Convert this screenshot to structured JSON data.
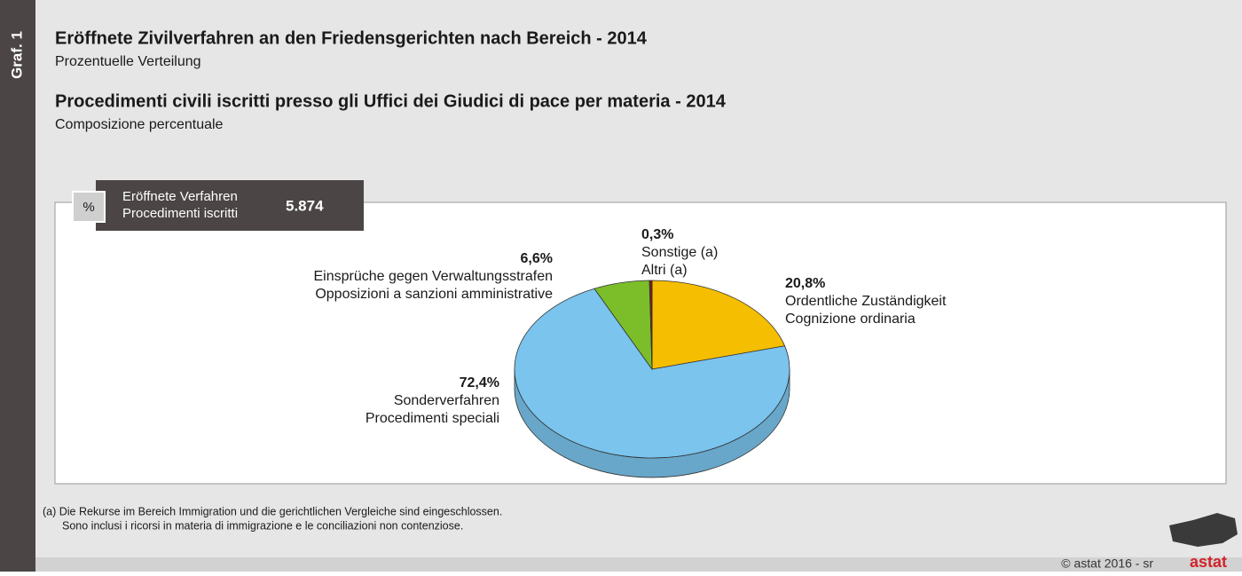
{
  "graph_label": "Graf. 1",
  "title": "Eröffnete Zivilverfahren an den Friedensgerichten nach Bereich - 2014",
  "subtitle": "Prozentuelle Verteilung",
  "title2": "Procedimenti civili iscritti presso gli Uffici dei Giudici di pace per materia - 2014",
  "subtitle2": "Composizione percentuale",
  "info_box": {
    "unit": "%",
    "label_de": "Eröffnete Verfahren",
    "label_it": "Procedimenti iscritti",
    "total": "5.874"
  },
  "chart_data": {
    "type": "pie",
    "categories": [
      [
        "Ordentliche Zuständigkeit",
        "Cognizione ordinaria"
      ],
      [
        "Sonderverfahren",
        "Procedimenti speciali"
      ],
      [
        "Einsprüche gegen Verwaltungsstrafen",
        "Opposizioni a sanzioni amministrative"
      ],
      [
        "Sonstige (a)",
        "Altri (a)"
      ]
    ],
    "values": [
      20.8,
      72.4,
      6.6,
      0.3
    ],
    "value_labels": [
      "20,8%",
      "72,4%",
      "6,6%",
      "0,3%"
    ],
    "colors": [
      "#f5be00",
      "#7ac4ee",
      "#7cbd2a",
      "#7a1b1b"
    ]
  },
  "footnotes": [
    "(a) Die Rekurse im Bereich Immigration und die gerichtlichen Vergleiche sind eingeschlossen.",
    "Sono inclusi i ricorsi in materia di immigrazione e le conciliazioni non contenziose."
  ],
  "copyright": "© astat 2016 - sr",
  "logo": "astat"
}
